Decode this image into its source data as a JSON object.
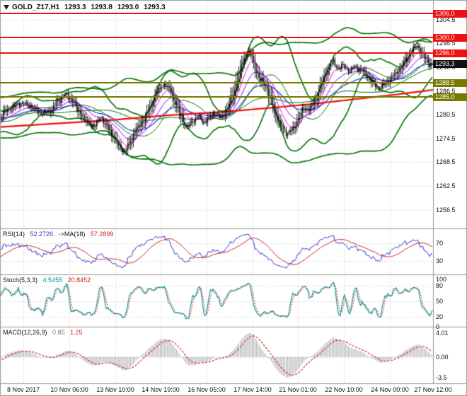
{
  "header": {
    "symbol_period": "GOLD_Z17,H1",
    "open": "1293.3",
    "high": "1293.8",
    "low": "1293.0",
    "close": "1293.3"
  },
  "chart_data": {
    "type": "candlestick",
    "symbol": "GOLD_Z17",
    "timeframe": "H1",
    "current_ohlc": {
      "open": 1293.3,
      "high": 1293.8,
      "low": 1293.0,
      "close": 1293.3
    },
    "bar_count": 320,
    "price_range": {
      "min": 1251.8,
      "max": 1309.3
    },
    "price_axis_ticks": [
      "1304.5",
      "1298.5",
      "1292.5",
      "1286.5",
      "1280.5",
      "1274.5",
      "1268.5",
      "1262.5",
      "1256.5"
    ],
    "time_axis_ticks": [
      "8 Nov 2017",
      "10 Nov 06:00",
      "13 Nov 10:00",
      "14 Nov 19:00",
      "16 Nov 05:00",
      "17 Nov 14:00",
      "21 Nov 01:00",
      "22 Nov 10:00",
      "24 Nov 00:00",
      "27 Nov 12:00"
    ],
    "levels": [
      {
        "value": 1306.0,
        "label": "1306.0",
        "type": "resistance",
        "color": "#ee1111"
      },
      {
        "value": 1300.0,
        "label": "1300.0",
        "type": "resistance",
        "color": "#ee1111"
      },
      {
        "value": 1296.0,
        "label": "1296.0",
        "type": "resistance",
        "color": "#ee1111"
      },
      {
        "value": 1293.3,
        "label": "1293.3",
        "type": "current-price",
        "color": "#111111"
      },
      {
        "value": 1288.5,
        "label": "1288.5",
        "type": "support",
        "color": "#7a7a00"
      },
      {
        "value": 1285.0,
        "label": "1285.0",
        "type": "support",
        "color": "#7a7a00"
      }
    ],
    "price_path": [
      [
        4,
        1281.2
      ],
      [
        16,
        1282.2
      ],
      [
        28,
        1283.4
      ],
      [
        40,
        1283.0
      ],
      [
        52,
        1281.6
      ],
      [
        62,
        1280.8
      ],
      [
        72,
        1281.6
      ],
      [
        82,
        1284.0
      ],
      [
        92,
        1285.6
      ],
      [
        102,
        1284.2
      ],
      [
        112,
        1281.2
      ],
      [
        124,
        1278.6
      ],
      [
        134,
        1277.6
      ],
      [
        142,
        1279.8
      ],
      [
        152,
        1277.4
      ],
      [
        160,
        1275.2
      ],
      [
        168,
        1272.6
      ],
      [
        176,
        1271.2
      ],
      [
        184,
        1273.6
      ],
      [
        192,
        1276.6
      ],
      [
        202,
        1278.8
      ],
      [
        212,
        1282.2
      ],
      [
        222,
        1286.2
      ],
      [
        232,
        1288.2
      ],
      [
        240,
        1287.0
      ],
      [
        248,
        1283.6
      ],
      [
        256,
        1280.2
      ],
      [
        264,
        1277.4
      ],
      [
        272,
        1278.8
      ],
      [
        280,
        1280.0
      ],
      [
        288,
        1278.6
      ],
      [
        296,
        1279.8
      ],
      [
        304,
        1281.0
      ],
      [
        312,
        1279.8
      ],
      [
        320,
        1281.6
      ],
      [
        328,
        1285.0
      ],
      [
        336,
        1289.6
      ],
      [
        344,
        1294.2
      ],
      [
        350,
        1296.4
      ],
      [
        356,
        1295.2
      ],
      [
        362,
        1291.8
      ],
      [
        368,
        1289.2
      ],
      [
        374,
        1288.4
      ],
      [
        382,
        1285.0
      ],
      [
        390,
        1280.6
      ],
      [
        398,
        1277.4
      ],
      [
        406,
        1275.8
      ],
      [
        414,
        1276.8
      ],
      [
        422,
        1279.6
      ],
      [
        430,
        1282.2
      ],
      [
        438,
        1282.0
      ],
      [
        446,
        1284.2
      ],
      [
        454,
        1288.0
      ],
      [
        462,
        1291.4
      ],
      [
        470,
        1293.8
      ],
      [
        478,
        1292.4
      ],
      [
        486,
        1292.8
      ],
      [
        494,
        1291.6
      ],
      [
        502,
        1292.6
      ],
      [
        510,
        1291.8
      ],
      [
        518,
        1290.6
      ],
      [
        526,
        1288.8
      ],
      [
        534,
        1287.2
      ],
      [
        542,
        1288.0
      ],
      [
        550,
        1289.2
      ],
      [
        558,
        1290.6
      ],
      [
        566,
        1292.2
      ],
      [
        574,
        1294.4
      ],
      [
        582,
        1296.6
      ],
      [
        590,
        1297.8
      ],
      [
        596,
        1296.2
      ],
      [
        602,
        1294.4
      ],
      [
        608,
        1293.3
      ]
    ],
    "trend_ma_path": [
      [
        0,
        1277.4
      ],
      [
        80,
        1278.3
      ],
      [
        160,
        1279.2
      ],
      [
        240,
        1280.4
      ],
      [
        320,
        1281.3
      ],
      [
        380,
        1282.2
      ],
      [
        440,
        1283.2
      ],
      [
        500,
        1284.4
      ],
      [
        560,
        1285.6
      ],
      [
        612,
        1286.8
      ]
    ],
    "colors": {
      "candle": "#000000",
      "bands": "#007000",
      "ma_fast": "#ff00ff",
      "ma_mid": "#8000ff",
      "ma_blue": "#2040cc",
      "trend": "#ee1111",
      "grid": "#c9c9c9",
      "panel_border": "#999999"
    }
  },
  "indicators": {
    "rsi": {
      "name": "RSI(14)",
      "value": "52.2726",
      "ma_name": "->MA(18)",
      "ma_value": "57.2899",
      "levels": [
        70,
        30
      ],
      "axis_ticks": [
        "70",
        "30"
      ],
      "range": [
        0,
        100
      ],
      "line_color": "#3333cc",
      "ma_color": "#cc2222"
    },
    "stochastic": {
      "name": "Stoch(5,3,3)",
      "k_value": "4.5455",
      "d_value": "20.8452",
      "levels": [
        80,
        50,
        20
      ],
      "axis_ticks": [
        "100",
        "80",
        "50",
        "20",
        "0"
      ],
      "range": [
        0,
        100
      ],
      "k_color": "#008f8f",
      "d_color": "#cc2222"
    },
    "macd": {
      "name": "MACD(12,26,9)",
      "value": "0.85",
      "signal_value": "1.25",
      "axis_ticks": [
        "4.01",
        "0.00",
        "-3.5"
      ],
      "range": [
        -4.4,
        4.8
      ],
      "histogram_color": "#b4b4b4",
      "signal_color": "#cc2222"
    }
  }
}
